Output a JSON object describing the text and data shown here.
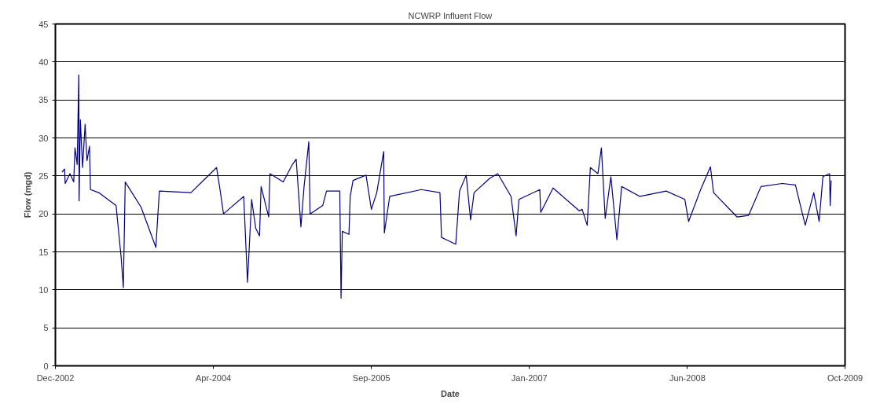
{
  "chart_data": {
    "type": "line",
    "title": "NCWRP Influent Flow",
    "xlabel": "Date",
    "ylabel": "Flow (mgd)",
    "x": [
      "2003-01-05",
      "2003-01-13",
      "2003-01-15",
      "2003-01-30",
      "2003-02-11",
      "2003-02-15",
      "2003-02-22",
      "2003-02-27",
      "2003-02-28",
      "2003-03-04",
      "2003-03-11",
      "2003-03-19",
      "2003-03-25",
      "2003-04-02",
      "2003-04-05",
      "2003-05-01",
      "2003-06-25",
      "2003-07-11",
      "2003-07-18",
      "2003-07-24",
      "2003-09-12",
      "2003-10-29",
      "2003-11-09",
      "2004-02-17",
      "2004-05-08",
      "2004-05-19",
      "2004-05-30",
      "2004-08-02",
      "2004-08-14",
      "2004-08-27",
      "2004-09-09",
      "2004-09-21",
      "2004-09-26",
      "2004-10-20",
      "2004-10-24",
      "2004-12-05",
      "2005-01-03",
      "2005-01-15",
      "2005-01-30",
      "2005-02-09",
      "2005-02-24",
      "2005-02-28",
      "2005-04-09",
      "2005-04-21",
      "2005-06-02",
      "2005-06-06",
      "2005-06-10",
      "2005-07-01",
      "2005-07-05",
      "2005-07-14",
      "2005-08-24",
      "2005-09-10",
      "2005-09-27",
      "2005-10-19",
      "2005-10-21",
      "2005-11-07",
      "2006-02-15",
      "2006-04-15",
      "2006-04-20",
      "2006-05-05",
      "2006-06-04",
      "2006-06-16",
      "2006-07-07",
      "2006-07-21",
      "2006-08-01",
      "2006-09-20",
      "2006-10-15",
      "2006-11-26",
      "2006-12-12",
      "2006-12-21",
      "2007-02-25",
      "2007-02-28",
      "2007-04-08",
      "2007-06-30",
      "2007-07-09",
      "2007-07-25",
      "2007-08-04",
      "2007-08-28",
      "2007-09-08",
      "2007-09-20",
      "2007-10-08",
      "2007-10-27",
      "2007-11-11",
      "2008-01-08",
      "2008-03-31",
      "2008-05-29",
      "2008-06-10",
      "2008-07-18",
      "2008-08-18",
      "2008-08-28",
      "2008-11-10",
      "2008-12-17",
      "2009-01-25",
      "2009-04-02",
      "2009-05-14",
      "2009-06-14",
      "2009-07-11",
      "2009-07-28",
      "2009-08-09",
      "2009-08-30",
      "2009-09-01",
      "2009-09-04"
    ],
    "series": [
      {
        "color": "#000080",
        "values": [
          25.5,
          25.9,
          24.0,
          25.3,
          24.2,
          28.7,
          26.5,
          38.3,
          21.7,
          32.4,
          26.1,
          31.8,
          27.0,
          28.9,
          23.2,
          22.8,
          21.1,
          14.3,
          10.3,
          24.2,
          20.9,
          15.6,
          23.0,
          22.8,
          26.1,
          23.2,
          20.0,
          22.3,
          11.0,
          21.9,
          18.1,
          17.1,
          23.6,
          19.6,
          25.3,
          24.2,
          26.5,
          27.2,
          18.3,
          23.6,
          29.5,
          20.0,
          21.1,
          23.0,
          23.0,
          8.9,
          17.7,
          17.3,
          22.3,
          24.4,
          25.1,
          20.6,
          22.8,
          28.2,
          17.5,
          22.3,
          23.2,
          22.8,
          16.9,
          16.6,
          16.0,
          23.0,
          25.1,
          19.2,
          22.8,
          24.7,
          25.3,
          22.3,
          17.1,
          21.9,
          23.2,
          20.2,
          23.4,
          20.4,
          20.6,
          18.5,
          26.1,
          25.3,
          28.7,
          19.4,
          24.9,
          16.6,
          23.6,
          22.3,
          23.0,
          21.9,
          19.0,
          23.2,
          26.2,
          22.8,
          19.6,
          19.8,
          23.6,
          24.0,
          23.8,
          18.5,
          22.8,
          19.0,
          24.9,
          25.3,
          21.1,
          24.4
        ]
      }
    ],
    "xlim": [
      "2002-12-15",
      "2009-10-18"
    ],
    "xticks": [
      {
        "value": "2002-12-15",
        "label": "Dec-2002"
      },
      {
        "value": "2004-04-28",
        "label": "Apr-2004"
      },
      {
        "value": "2005-09-10",
        "label": "Sep-2005"
      },
      {
        "value": "2007-01-23",
        "label": "Jan-2007"
      },
      {
        "value": "2008-06-06",
        "label": "Jun-2008"
      },
      {
        "value": "2009-10-18",
        "label": "Oct-2009"
      }
    ],
    "ylim": [
      0,
      45
    ],
    "yticks": [
      0,
      5,
      10,
      15,
      20,
      25,
      30,
      35,
      40,
      45
    ],
    "grid": "y",
    "marker": "none",
    "line_style": "solid"
  }
}
